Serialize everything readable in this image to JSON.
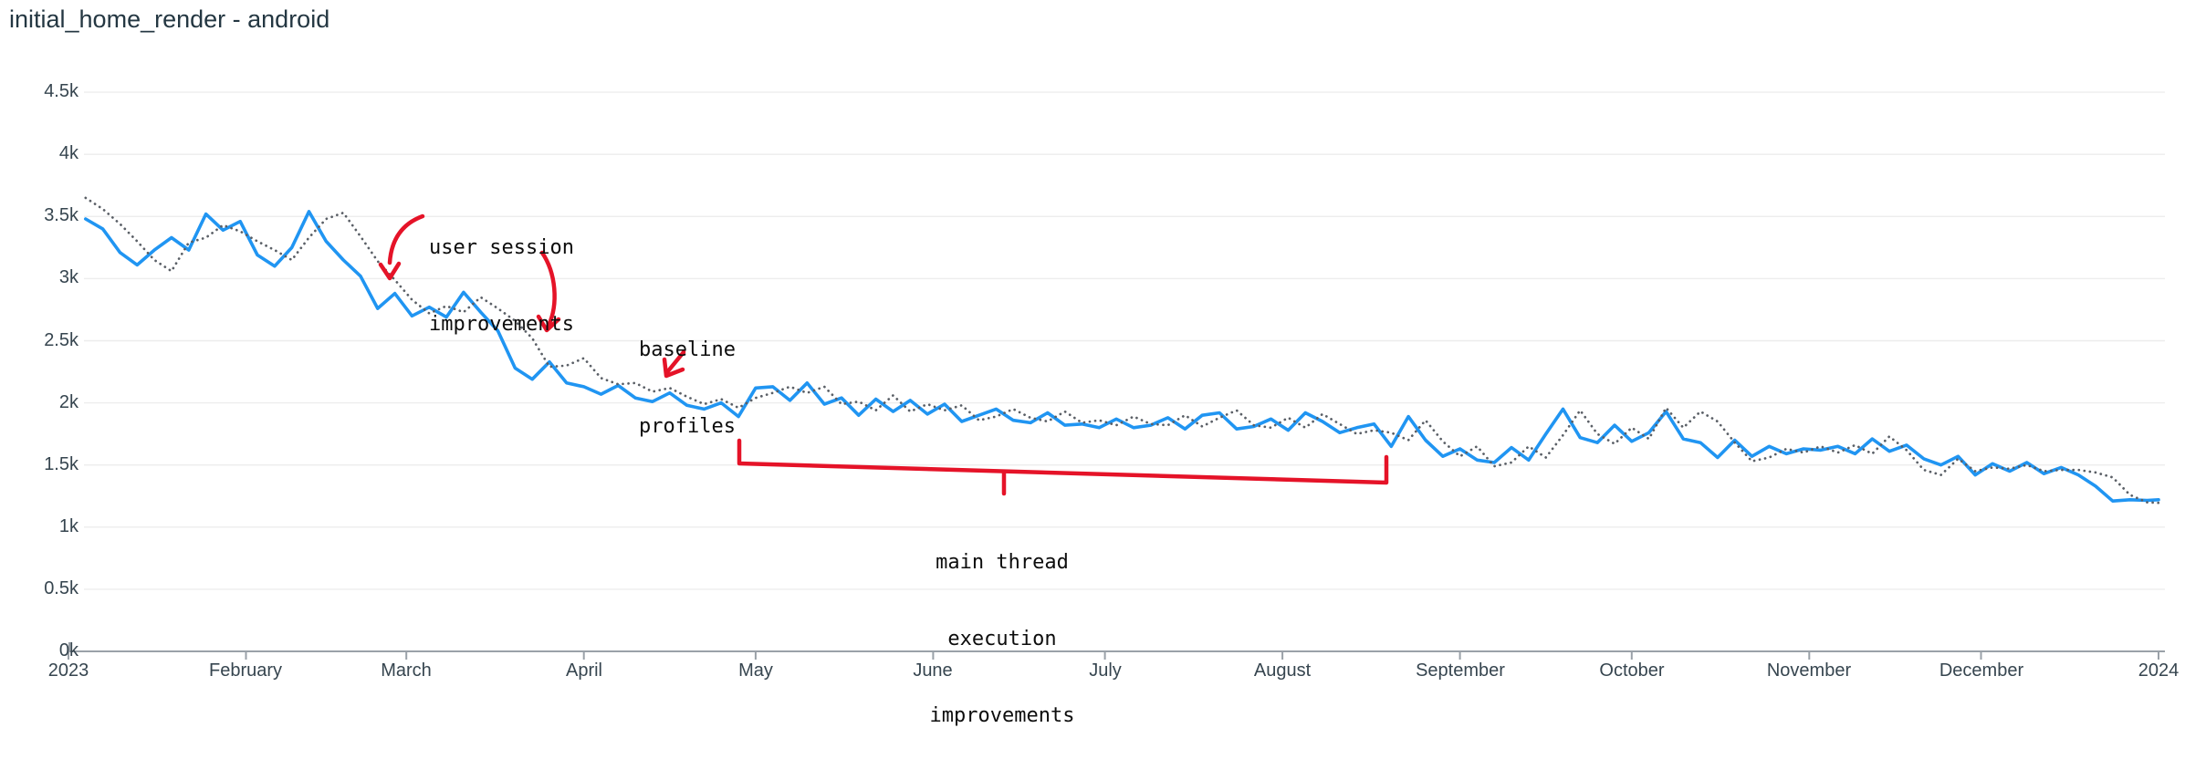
{
  "title": "initial_home_render - android",
  "chart_data": {
    "type": "line",
    "title": "initial_home_render - android",
    "xlabel": "",
    "ylabel": "",
    "ylim": [
      0,
      4500
    ],
    "grid": "horizontal",
    "legend": "none",
    "colors": {
      "line_solid": "#2095f2",
      "line_dotted": "#5a5f66",
      "annotation_red": "#e51328",
      "grid": "#ededed",
      "axis": "#9aa1a8",
      "title_text": "#243742",
      "axis_text": "#36454f",
      "annotation_text": "#0d0d0d"
    },
    "x_axis": {
      "unit": "day_of_year_2023",
      "ticks": [
        {
          "label": "2023",
          "day": 0
        },
        {
          "label": "February",
          "day": 31
        },
        {
          "label": "March",
          "day": 59
        },
        {
          "label": "April",
          "day": 90
        },
        {
          "label": "May",
          "day": 120
        },
        {
          "label": "June",
          "day": 151
        },
        {
          "label": "July",
          "day": 181
        },
        {
          "label": "August",
          "day": 212
        },
        {
          "label": "September",
          "day": 243
        },
        {
          "label": "October",
          "day": 273
        },
        {
          "label": "November",
          "day": 304
        },
        {
          "label": "December",
          "day": 334
        },
        {
          "label": "2024",
          "day": 365
        }
      ]
    },
    "y_axis": {
      "ticks": [
        {
          "label": "0k",
          "value": 0
        },
        {
          "label": "0.5k",
          "value": 500
        },
        {
          "label": "1k",
          "value": 1000
        },
        {
          "label": "1.5k",
          "value": 1500
        },
        {
          "label": "2k",
          "value": 2000
        },
        {
          "label": "2.5k",
          "value": 2500
        },
        {
          "label": "3k",
          "value": 3000
        },
        {
          "label": "3.5k",
          "value": 3500
        },
        {
          "label": "4k",
          "value": 4000
        },
        {
          "label": "4.5k",
          "value": 4500
        }
      ]
    },
    "x_days": [
      3,
      6,
      9,
      12,
      15,
      18,
      21,
      24,
      27,
      30,
      33,
      36,
      39,
      42,
      45,
      48,
      51,
      54,
      57,
      60,
      63,
      66,
      69,
      72,
      75,
      78,
      81,
      84,
      87,
      90,
      93,
      96,
      99,
      102,
      105,
      108,
      111,
      114,
      117,
      120,
      123,
      126,
      129,
      132,
      135,
      138,
      141,
      144,
      147,
      150,
      153,
      156,
      159,
      162,
      165,
      168,
      171,
      174,
      177,
      180,
      183,
      186,
      189,
      192,
      195,
      198,
      201,
      204,
      207,
      210,
      213,
      216,
      219,
      222,
      225,
      228,
      231,
      234,
      237,
      240,
      243,
      246,
      249,
      252,
      255,
      258,
      261,
      264,
      267,
      270,
      273,
      276,
      279,
      282,
      285,
      288,
      291,
      294,
      297,
      300,
      303,
      306,
      309,
      312,
      315,
      318,
      321,
      324,
      327,
      330,
      333,
      336,
      339,
      342,
      345,
      348,
      351,
      354,
      357,
      360,
      363,
      365
    ],
    "series": [
      {
        "name": "solid_blue_line",
        "style": "solid",
        "color": "#2095f2",
        "values": [
          3480,
          3400,
          3210,
          3110,
          3230,
          3330,
          3230,
          3520,
          3390,
          3460,
          3190,
          3100,
          3250,
          3540,
          3300,
          3150,
          3020,
          2760,
          2880,
          2700,
          2770,
          2690,
          2890,
          2730,
          2580,
          2280,
          2190,
          2330,
          2160,
          2130,
          2070,
          2140,
          2040,
          2010,
          2080,
          1980,
          1950,
          2000,
          1890,
          2120,
          2130,
          2020,
          2160,
          1990,
          2040,
          1900,
          2030,
          1930,
          2020,
          1910,
          1990,
          1850,
          1900,
          1950,
          1860,
          1840,
          1920,
          1820,
          1830,
          1800,
          1870,
          1800,
          1820,
          1880,
          1790,
          1900,
          1920,
          1790,
          1810,
          1870,
          1780,
          1920,
          1850,
          1760,
          1800,
          1830,
          1650,
          1890,
          1700,
          1570,
          1630,
          1540,
          1520,
          1640,
          1540,
          1750,
          1950,
          1720,
          1680,
          1820,
          1690,
          1760,
          1930,
          1710,
          1680,
          1560,
          1700,
          1570,
          1650,
          1590,
          1630,
          1620,
          1650,
          1590,
          1710,
          1610,
          1660,
          1550,
          1500,
          1570,
          1420,
          1510,
          1450,
          1520,
          1430,
          1480,
          1420,
          1330,
          1210,
          1220,
          1215,
          1220
        ]
      },
      {
        "name": "dotted_gray_line",
        "style": "dotted",
        "color": "#5a5f66",
        "values": [
          3650,
          3560,
          3440,
          3300,
          3150,
          3060,
          3290,
          3330,
          3430,
          3380,
          3300,
          3230,
          3150,
          3330,
          3480,
          3530,
          3340,
          3140,
          2990,
          2830,
          2720,
          2780,
          2730,
          2850,
          2760,
          2660,
          2520,
          2290,
          2300,
          2360,
          2200,
          2150,
          2160,
          2090,
          2120,
          2050,
          1990,
          2030,
          1960,
          2040,
          2080,
          2130,
          2080,
          2130,
          1990,
          2010,
          1940,
          2060,
          1930,
          1990,
          1940,
          1980,
          1860,
          1890,
          1950,
          1880,
          1850,
          1930,
          1840,
          1860,
          1820,
          1890,
          1830,
          1820,
          1900,
          1810,
          1880,
          1940,
          1820,
          1800,
          1880,
          1800,
          1910,
          1830,
          1750,
          1780,
          1760,
          1700,
          1860,
          1690,
          1570,
          1650,
          1490,
          1520,
          1650,
          1560,
          1740,
          1940,
          1750,
          1670,
          1800,
          1710,
          1960,
          1800,
          1930,
          1850,
          1680,
          1530,
          1560,
          1630,
          1600,
          1650,
          1600,
          1660,
          1590,
          1730,
          1620,
          1460,
          1420,
          1550,
          1450,
          1480,
          1470,
          1500,
          1450,
          1460,
          1460,
          1440,
          1400,
          1260,
          1200,
          1195
        ]
      }
    ],
    "annotations": [
      {
        "id": "user-session",
        "lines": [
          "user session",
          "improvements"
        ]
      },
      {
        "id": "baseline-profiles",
        "lines": [
          "baseline",
          "profiles"
        ]
      },
      {
        "id": "main-thread",
        "lines": [
          "main thread",
          "execution",
          "improvements"
        ]
      }
    ]
  }
}
